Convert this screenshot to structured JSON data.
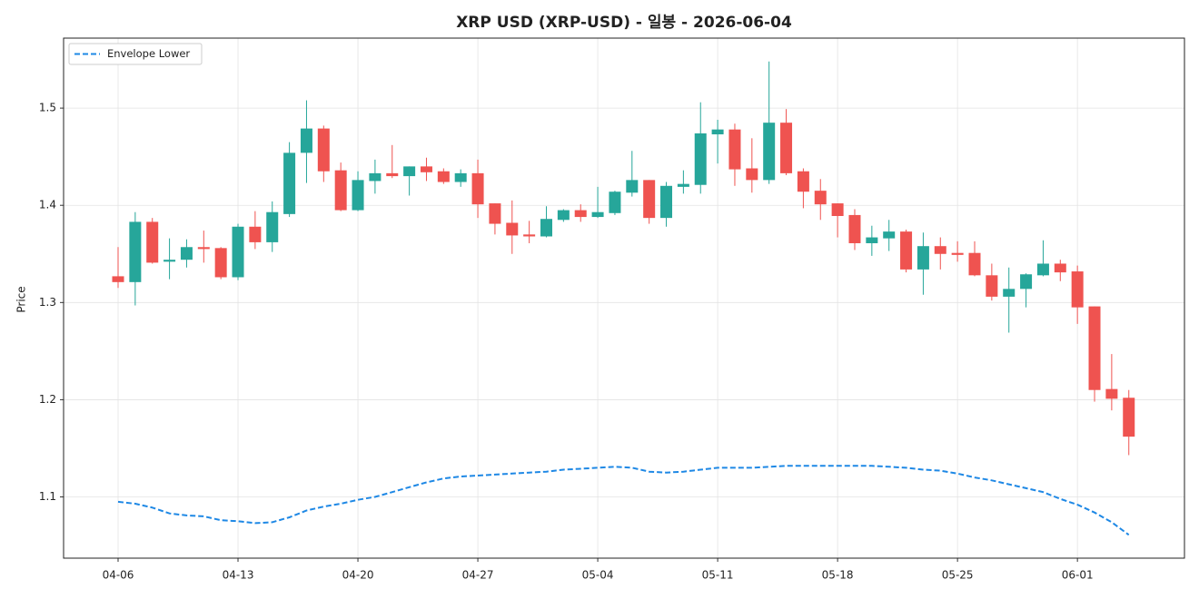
{
  "chart_data": {
    "type": "candlestick",
    "title": "XRP USD (XRP-USD) - 일봉 - 2026-06-04",
    "y_label": "Price",
    "categories": [
      "04-06",
      null,
      null,
      null,
      null,
      null,
      null,
      "04-13",
      null,
      null,
      null,
      null,
      null,
      null,
      "04-20",
      null,
      null,
      null,
      null,
      null,
      null,
      "04-27",
      null,
      null,
      null,
      null,
      null,
      null,
      "05-04",
      null,
      null,
      null,
      null,
      null,
      null,
      "05-11",
      null,
      null,
      null,
      null,
      null,
      null,
      "05-18",
      null,
      null,
      null,
      null,
      null,
      null,
      "05-25",
      null,
      null,
      null,
      null,
      null,
      null,
      "06-01",
      null,
      null,
      null
    ],
    "open": [
      1.327,
      1.321,
      1.383,
      1.342,
      1.344,
      1.357,
      1.356,
      1.326,
      1.378,
      1.362,
      1.391,
      1.454,
      1.479,
      1.436,
      1.395,
      1.425,
      1.433,
      1.43,
      1.44,
      1.435,
      1.424,
      1.433,
      1.402,
      1.382,
      1.37,
      1.368,
      1.385,
      1.395,
      1.388,
      1.392,
      1.413,
      1.426,
      1.387,
      1.419,
      1.421,
      1.473,
      1.478,
      1.438,
      1.426,
      1.485,
      1.435,
      1.415,
      1.402,
      1.39,
      1.361,
      1.366,
      1.373,
      1.334,
      1.358,
      1.351,
      1.351,
      1.328,
      1.306,
      1.314,
      1.328,
      1.34,
      1.332,
      1.296,
      1.211,
      1.202
    ],
    "high": [
      1.357,
      1.393,
      1.387,
      1.366,
      1.365,
      1.374,
      1.357,
      1.381,
      1.394,
      1.404,
      1.465,
      1.508,
      1.482,
      1.444,
      1.435,
      1.447,
      1.462,
      1.44,
      1.449,
      1.438,
      1.437,
      1.447,
      1.402,
      1.405,
      1.384,
      1.399,
      1.396,
      1.401,
      1.419,
      1.415,
      1.456,
      1.426,
      1.424,
      1.436,
      1.506,
      1.488,
      1.484,
      1.469,
      1.548,
      1.499,
      1.438,
      1.427,
      1.402,
      1.396,
      1.379,
      1.385,
      1.375,
      1.372,
      1.367,
      1.363,
      1.363,
      1.34,
      1.336,
      1.33,
      1.364,
      1.344,
      1.338,
      1.296,
      1.247,
      1.21
    ],
    "low": [
      1.315,
      1.297,
      1.34,
      1.324,
      1.336,
      1.341,
      1.324,
      1.323,
      1.355,
      1.352,
      1.388,
      1.423,
      1.424,
      1.394,
      1.394,
      1.412,
      1.428,
      1.41,
      1.425,
      1.422,
      1.419,
      1.387,
      1.37,
      1.35,
      1.361,
      1.367,
      1.383,
      1.383,
      1.387,
      1.39,
      1.409,
      1.381,
      1.378,
      1.412,
      1.412,
      1.443,
      1.42,
      1.413,
      1.422,
      1.431,
      1.397,
      1.385,
      1.367,
      1.354,
      1.348,
      1.353,
      1.331,
      1.308,
      1.334,
      1.342,
      1.327,
      1.302,
      1.269,
      1.295,
      1.327,
      1.322,
      1.278,
      1.198,
      1.189,
      1.143
    ],
    "close": [
      1.321,
      1.383,
      1.341,
      1.344,
      1.357,
      1.355,
      1.326,
      1.378,
      1.362,
      1.393,
      1.454,
      1.479,
      1.435,
      1.395,
      1.426,
      1.433,
      1.43,
      1.44,
      1.434,
      1.424,
      1.433,
      1.401,
      1.381,
      1.369,
      1.368,
      1.386,
      1.395,
      1.388,
      1.393,
      1.414,
      1.426,
      1.387,
      1.42,
      1.422,
      1.474,
      1.478,
      1.437,
      1.426,
      1.485,
      1.433,
      1.414,
      1.401,
      1.389,
      1.361,
      1.367,
      1.373,
      1.334,
      1.358,
      1.35,
      1.349,
      1.328,
      1.306,
      1.314,
      1.329,
      1.34,
      1.331,
      1.295,
      1.21,
      1.201,
      1.162
    ],
    "up_color": "#26a69a",
    "down_color": "#ef5350",
    "series": [
      {
        "name": "Envelope Lower",
        "color": "#1e88e5",
        "dashed": true,
        "values": [
          1.095,
          1.093,
          1.089,
          1.083,
          1.081,
          1.08,
          1.076,
          1.075,
          1.073,
          1.074,
          1.079,
          1.086,
          1.09,
          1.093,
          1.097,
          1.1,
          1.105,
          1.11,
          1.115,
          1.119,
          1.121,
          1.122,
          1.123,
          1.124,
          1.125,
          1.126,
          1.128,
          1.129,
          1.13,
          1.131,
          1.13,
          1.126,
          1.125,
          1.126,
          1.128,
          1.13,
          1.13,
          1.13,
          1.131,
          1.132,
          1.132,
          1.132,
          1.132,
          1.132,
          1.132,
          1.131,
          1.13,
          1.128,
          1.127,
          1.124,
          1.12,
          1.117,
          1.113,
          1.109,
          1.105,
          1.098,
          1.092,
          1.084,
          1.074,
          1.061
        ]
      }
    ],
    "ylim": [
      1.037,
      1.572
    ],
    "yticks": [
      1.1,
      1.2,
      1.3,
      1.4,
      1.5
    ],
    "grid": true,
    "legend": "upper left"
  }
}
